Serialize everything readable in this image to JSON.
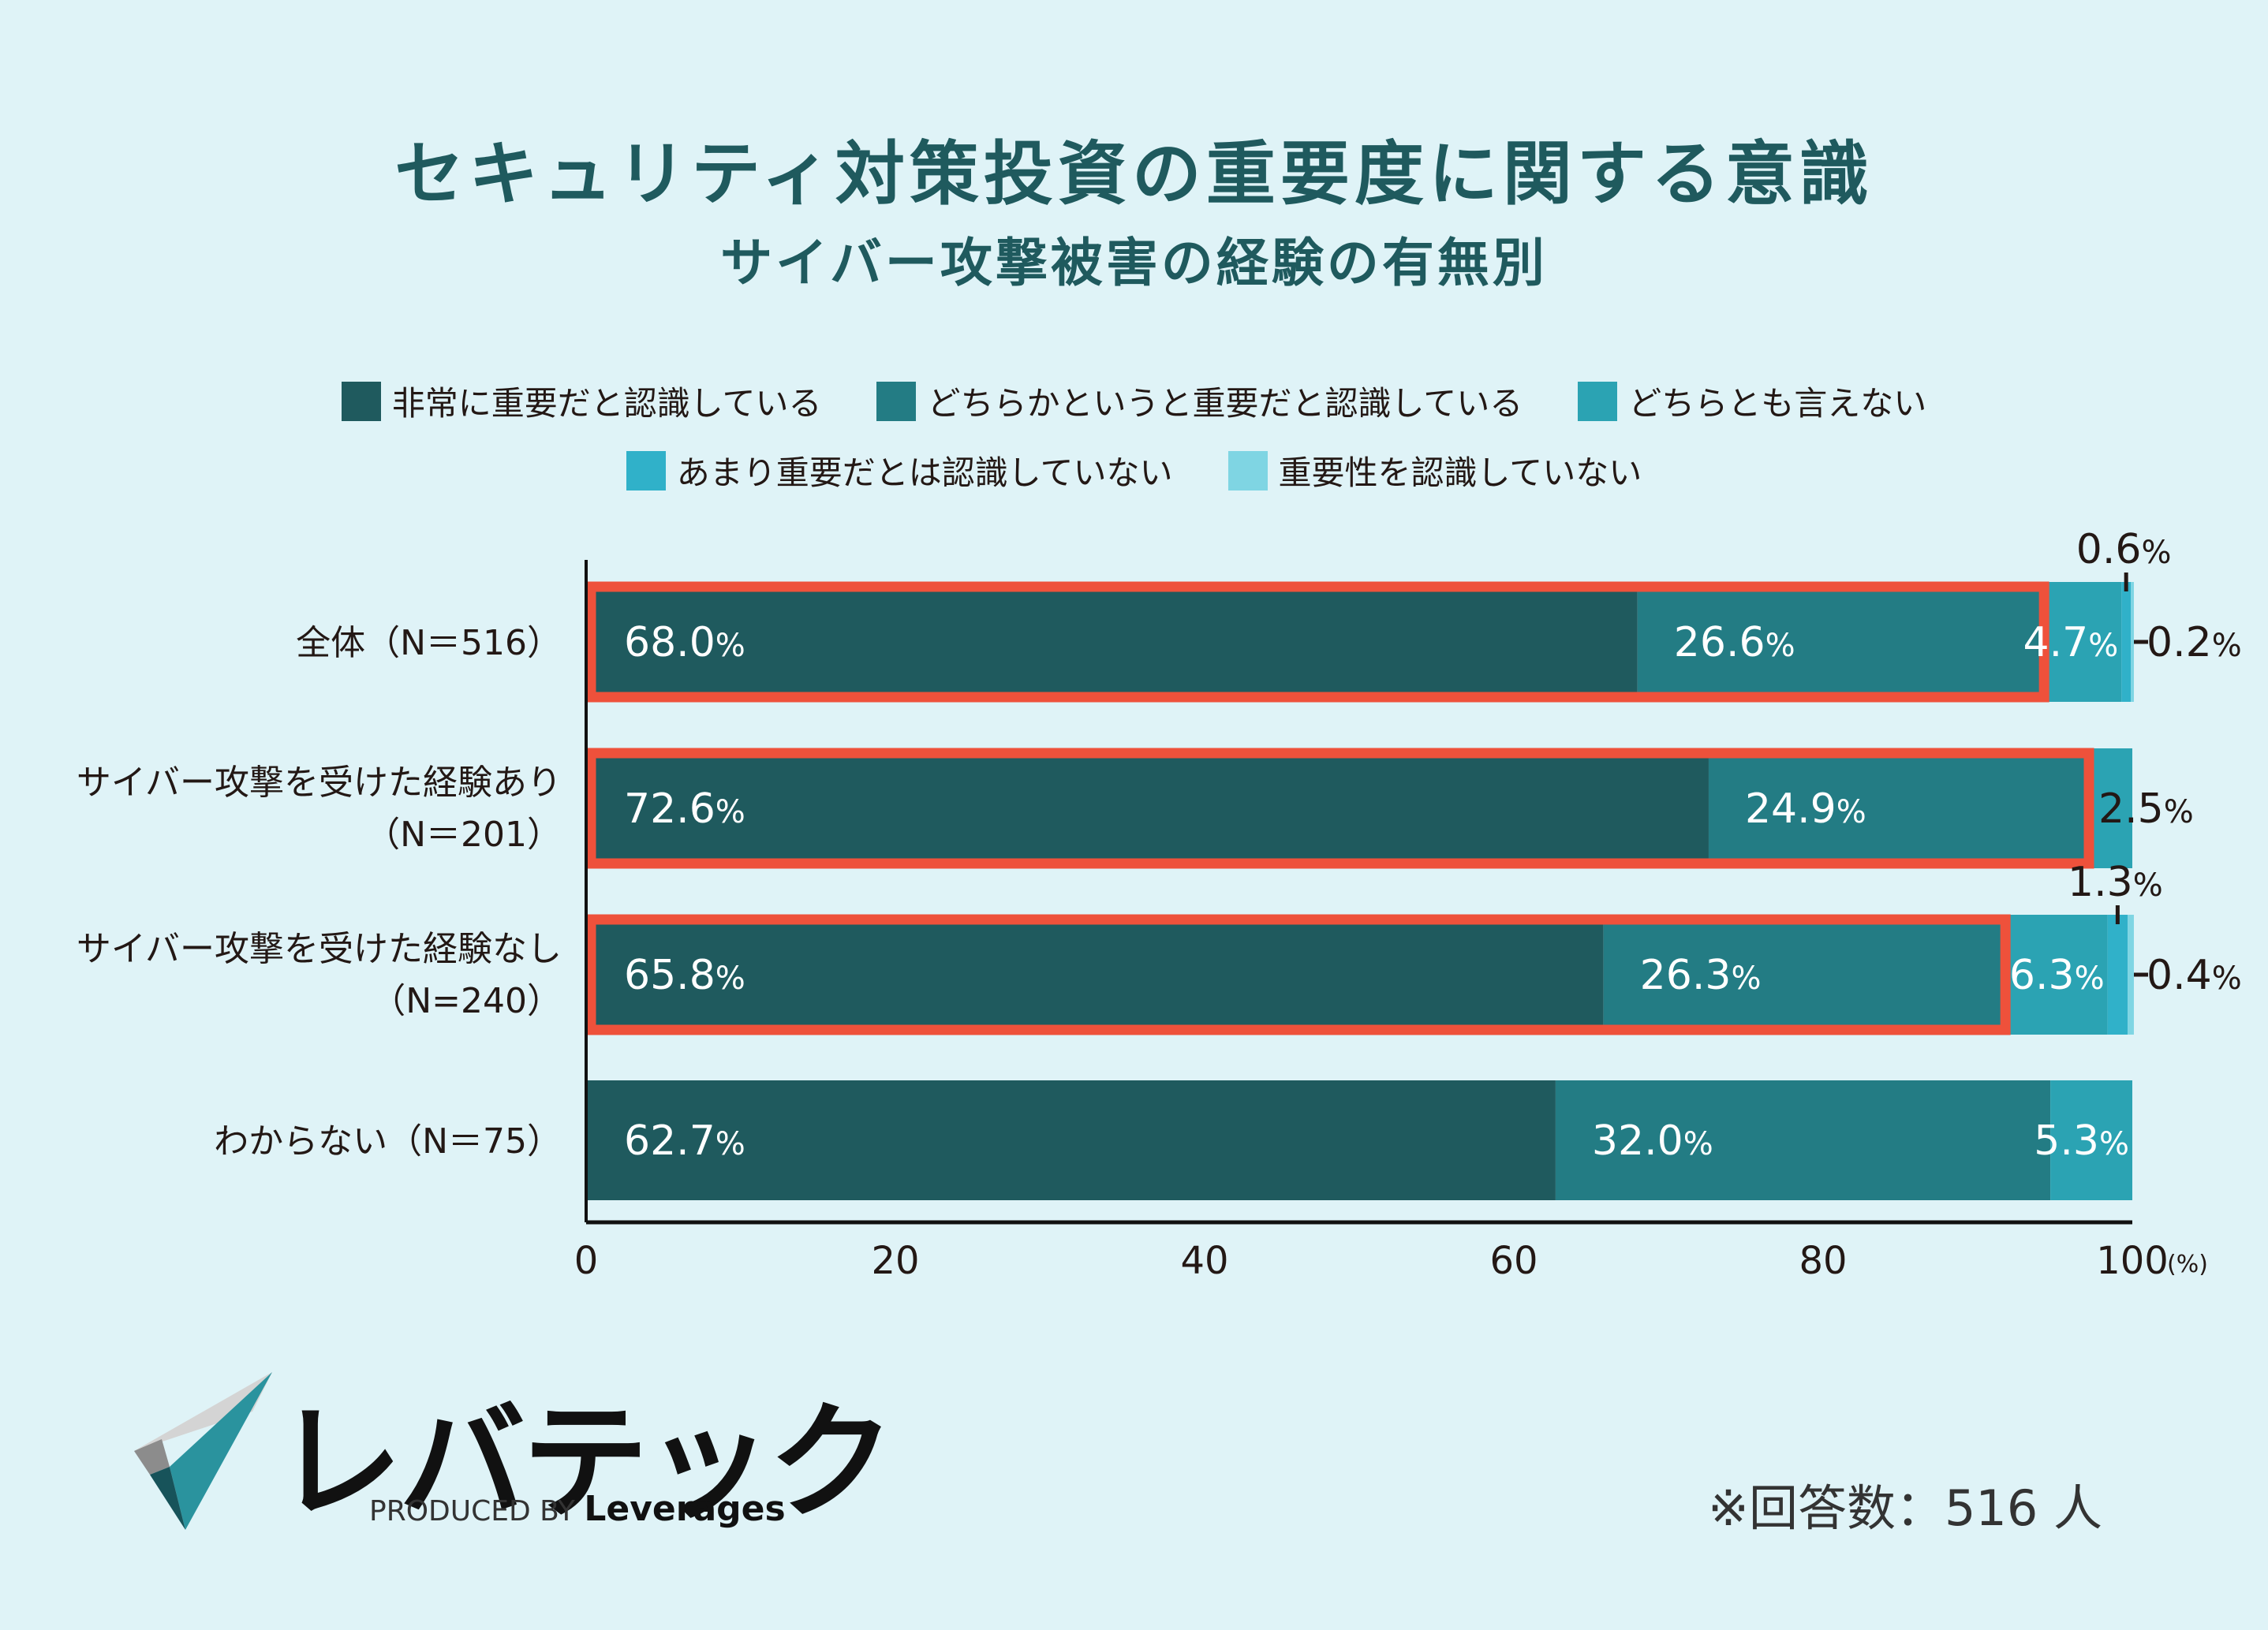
{
  "title": "セキュリティ対策投資の重要度に関する意識",
  "subtitle": "サイバー攻撃被害の経験の有無別",
  "legend": [
    {
      "label": "非常に重要だと認識している",
      "color": "#1f5a5e"
    },
    {
      "label": "どちらかというと重要だと認識している",
      "color": "#237c84"
    },
    {
      "label": "どちらとも言えない",
      "color": "#2ba3b3"
    },
    {
      "label": "あまり重要だとは認識していない",
      "color": "#30b1c9"
    },
    {
      "label": "重要性を認識していない",
      "color": "#7fd5e3"
    }
  ],
  "chart_data": {
    "type": "bar",
    "orientation": "horizontal",
    "stacked": true,
    "title": "セキュリティ対策投資の重要度に関する意識",
    "subtitle": "サイバー攻撃被害の経験の有無別",
    "categories": [
      [
        "全体（N＝516）"
      ],
      [
        "サイバー攻撃を受けた経験あり",
        "（N＝201）"
      ],
      [
        "サイバー攻撃を受けた経験なし",
        "（N=240）"
      ],
      [
        "わからない（N＝75）"
      ]
    ],
    "series": [
      {
        "name": "非常に重要だと認識している",
        "values": [
          68.0,
          72.6,
          65.8,
          62.7
        ]
      },
      {
        "name": "どちらかというと重要だと認識している",
        "values": [
          26.6,
          24.9,
          26.3,
          32.0
        ]
      },
      {
        "name": "どちらとも言えない",
        "values": [
          4.7,
          2.5,
          6.3,
          5.3
        ]
      },
      {
        "name": "あまり重要だとは認識していない",
        "values": [
          0.6,
          0,
          1.3,
          0
        ]
      },
      {
        "name": "重要性を認識していない",
        "values": [
          0.2,
          0,
          0.4,
          0
        ]
      }
    ],
    "labels": [
      [
        "68.0",
        "26.6",
        "4.7",
        "0.6",
        "0.2"
      ],
      [
        "72.6",
        "24.9",
        "2.5",
        null,
        null
      ],
      [
        "65.8",
        "26.3",
        "6.3",
        "1.3",
        "0.4"
      ],
      [
        "62.7",
        "32.0",
        "5.3",
        null,
        null
      ]
    ],
    "highlighted_rows": [
      0,
      1,
      2
    ],
    "highlight_series": [
      0,
      1
    ],
    "highlight_color": "#ee513b",
    "xlim": [
      0,
      100
    ],
    "xticks": [
      0,
      20,
      40,
      60,
      80,
      100
    ],
    "xunit": "(%)",
    "value_suffix": "%",
    "legend_position": "top"
  },
  "footer": {
    "brand": "レバテック",
    "produced_by": "PRODUCED BY",
    "company": "Leverages",
    "note": "※回答数：516 人"
  }
}
